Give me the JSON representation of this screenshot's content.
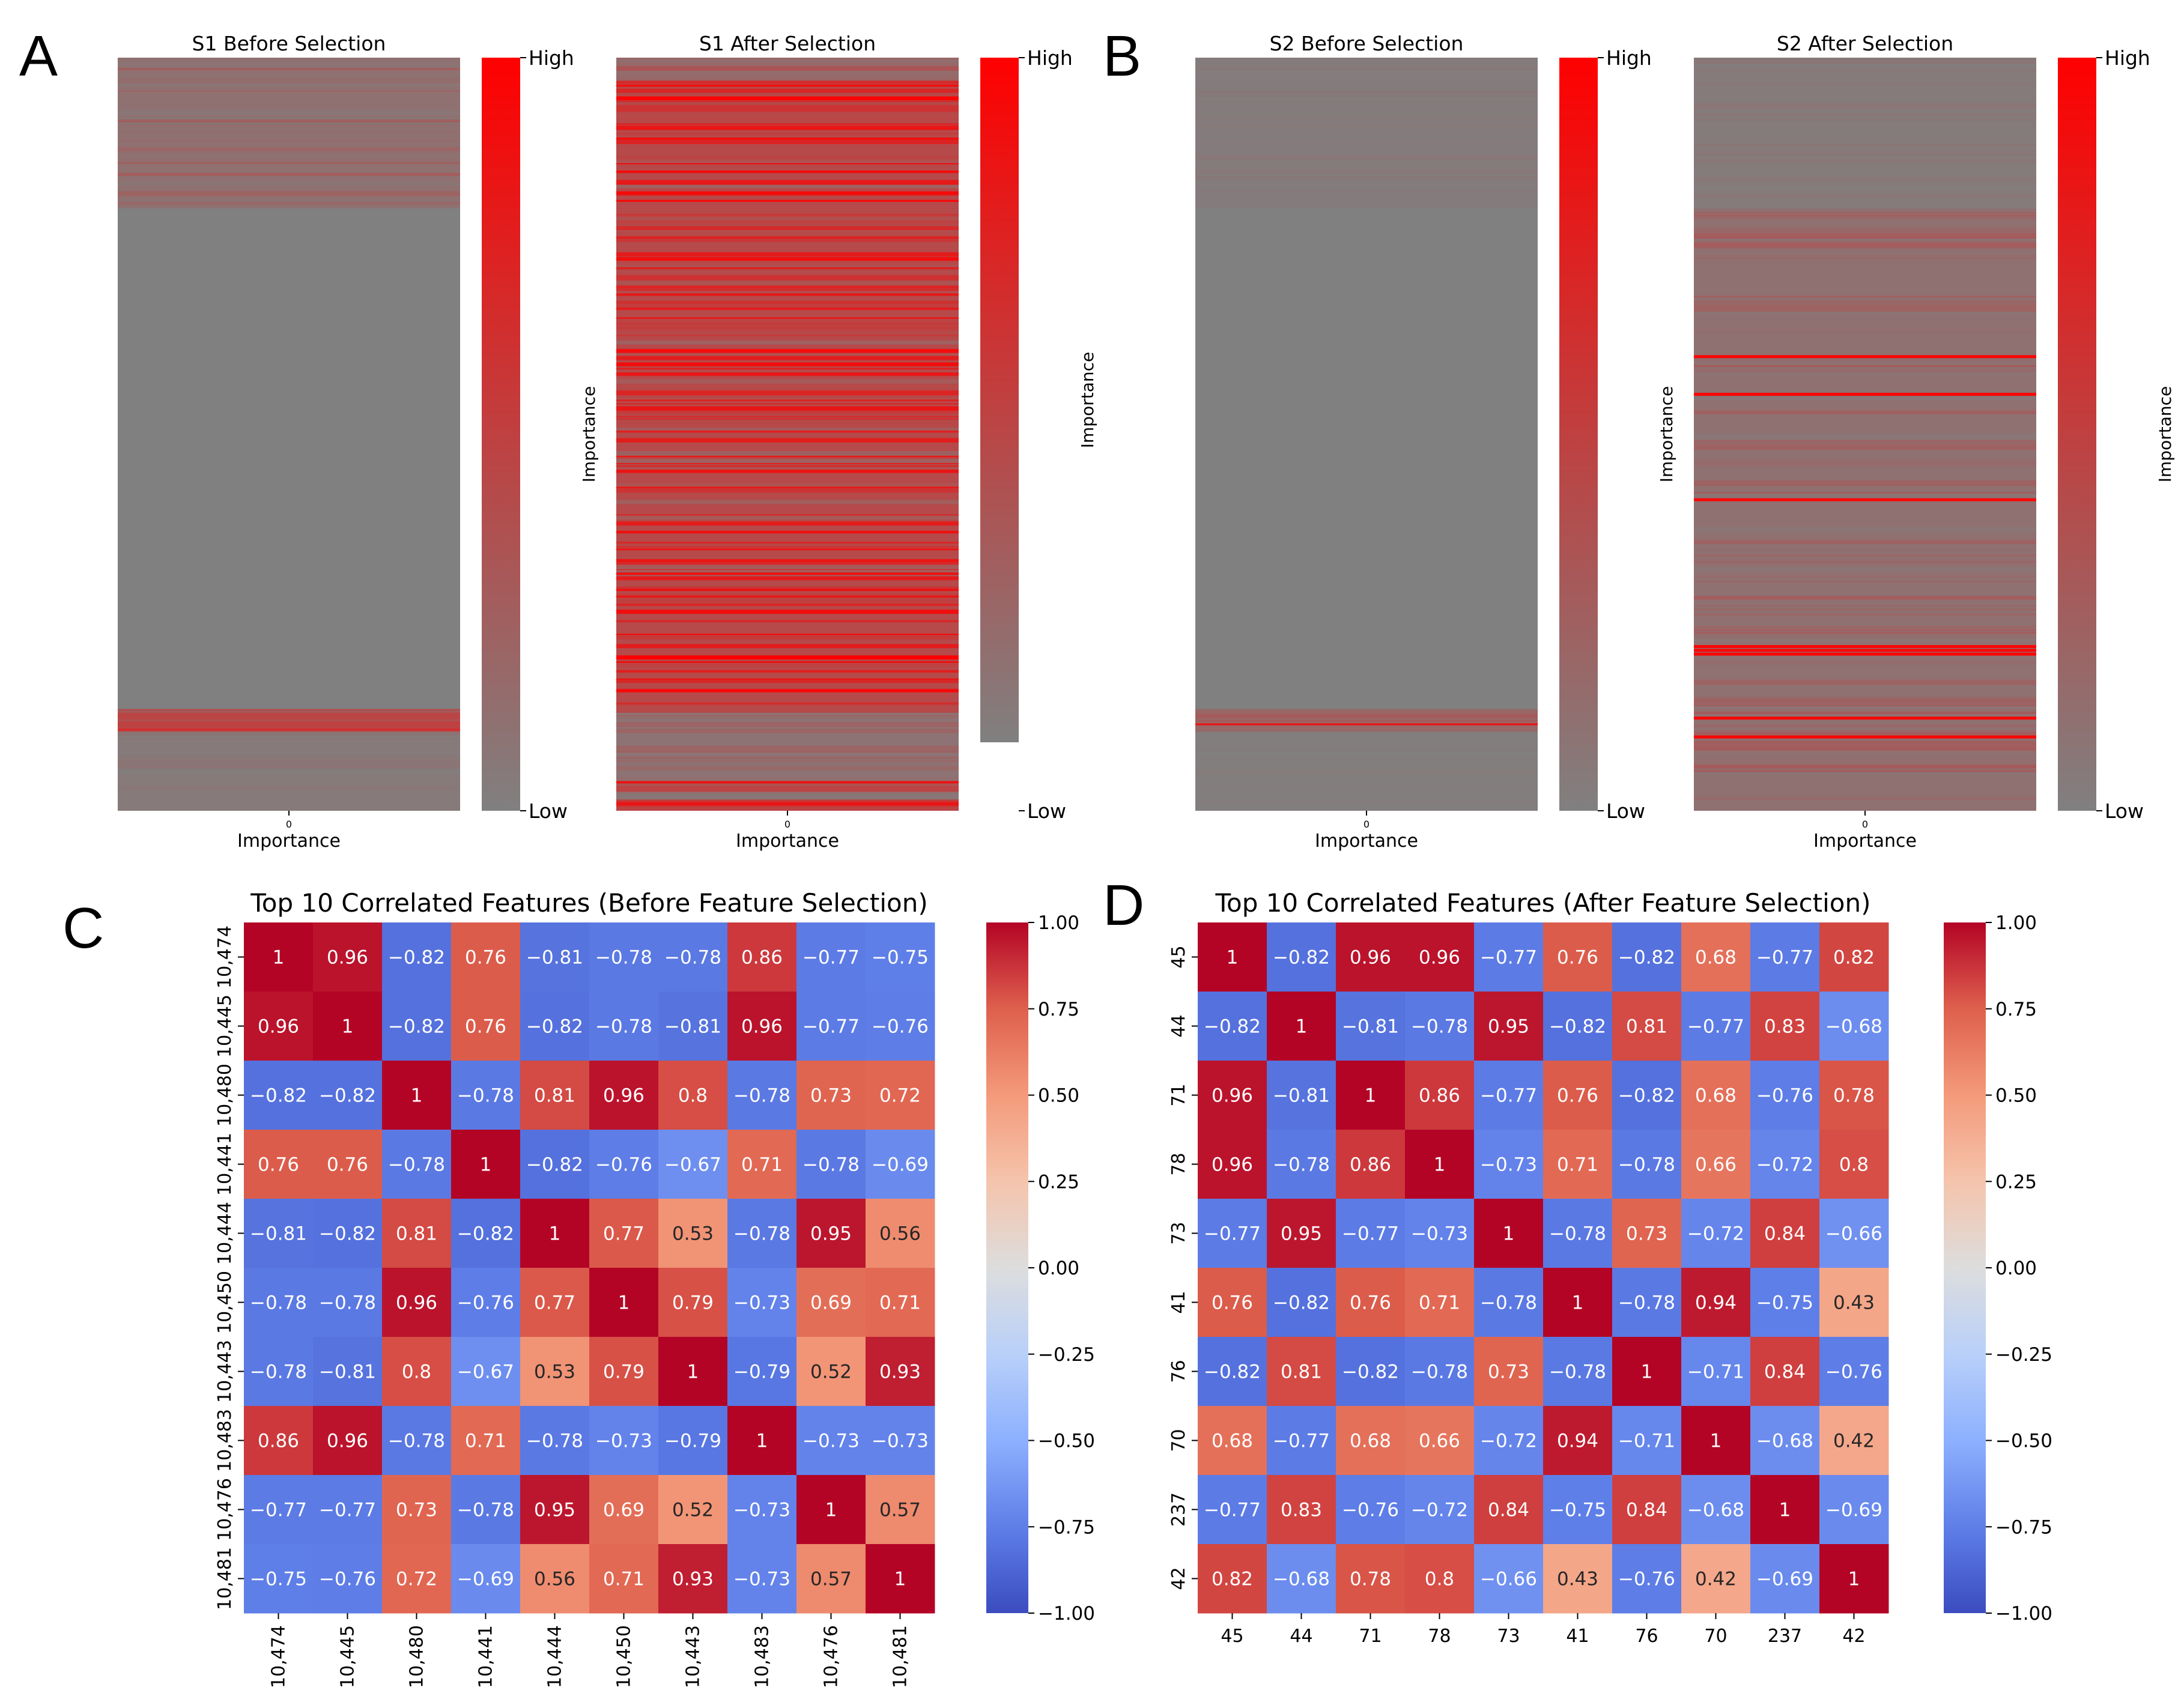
{
  "panels": {
    "a": "A",
    "b": "B",
    "c": "C",
    "d": "D"
  },
  "colors": {
    "gray": "#808080",
    "red": "#ff0000",
    "coolwarm_low": "#3b4cc0",
    "coolwarm_mid": "#dddddd",
    "coolwarm_high": "#b40426"
  },
  "chart_data": [
    {
      "type": "heatmap",
      "id": "s1-before",
      "title": "S1 Before Selection",
      "xlabel": "Importance",
      "xtick": "0",
      "colorbar": {
        "label": "Importance",
        "high": "High",
        "low": "Low"
      },
      "bands": [
        {
          "from": 0.0,
          "to": 0.2,
          "value": 0.22
        },
        {
          "from": 0.2,
          "to": 0.865,
          "value": 0.0
        },
        {
          "from": 0.865,
          "to": 0.895,
          "value": 0.85
        },
        {
          "from": 0.895,
          "to": 1.0,
          "value": 0.08
        }
      ]
    },
    {
      "type": "heatmap",
      "id": "s1-after",
      "title": "S1 After Selection",
      "xlabel": "Importance",
      "xtick": "0",
      "colorbar": {
        "label": "Importance",
        "high": "High",
        "low": "Low"
      },
      "bands": [
        {
          "from": 0.0,
          "to": 0.03,
          "value": 0.35
        },
        {
          "from": 0.03,
          "to": 0.87,
          "value": 0.78
        },
        {
          "from": 0.87,
          "to": 0.96,
          "value": 0.18
        },
        {
          "from": 0.96,
          "to": 0.975,
          "value": 0.85
        },
        {
          "from": 0.975,
          "to": 0.985,
          "value": 0.2
        },
        {
          "from": 0.985,
          "to": 1.0,
          "value": 0.85
        }
      ]
    },
    {
      "type": "heatmap",
      "id": "s2-before",
      "title": "S2 Before Selection",
      "xlabel": "Importance",
      "xtick": "0",
      "colorbar": {
        "label": "Importance",
        "high": "High",
        "low": "Low"
      },
      "bands": [
        {
          "from": 0.0,
          "to": 0.2,
          "value": 0.06
        },
        {
          "from": 0.2,
          "to": 0.865,
          "value": 0.0
        },
        {
          "from": 0.865,
          "to": 0.895,
          "value": 0.35
        },
        {
          "from": 0.895,
          "to": 1.0,
          "value": 0.03
        }
      ]
    },
    {
      "type": "heatmap",
      "id": "s2-after",
      "title": "S2 After Selection",
      "xlabel": "Importance",
      "xtick": "0",
      "colorbar": {
        "label": "Importance",
        "high": "High",
        "low": "Low"
      },
      "bands": [
        {
          "from": 0.0,
          "to": 0.2,
          "value": 0.07
        },
        {
          "from": 0.2,
          "to": 1.0,
          "value": 0.22
        }
      ]
    },
    {
      "type": "heatmap",
      "id": "corr-before",
      "title": "Top 10 Correlated Features (Before Feature Selection)",
      "labels": [
        "10,474",
        "10,445",
        "10,480",
        "10,441",
        "10,444",
        "10,450",
        "10,443",
        "10,483",
        "10,476",
        "10,481"
      ],
      "matrix": [
        [
          1,
          0.96,
          -0.82,
          0.76,
          -0.81,
          -0.78,
          -0.78,
          0.86,
          -0.77,
          -0.75
        ],
        [
          0.96,
          1,
          -0.82,
          0.76,
          -0.82,
          -0.78,
          -0.81,
          0.96,
          -0.77,
          -0.76
        ],
        [
          -0.82,
          -0.82,
          1,
          -0.78,
          0.81,
          0.96,
          0.8,
          -0.78,
          0.73,
          0.72
        ],
        [
          0.76,
          0.76,
          -0.78,
          1,
          -0.82,
          -0.76,
          -0.67,
          0.71,
          -0.78,
          -0.69
        ],
        [
          -0.81,
          -0.82,
          0.81,
          -0.82,
          1,
          0.77,
          0.53,
          -0.78,
          0.95,
          0.56
        ],
        [
          -0.78,
          -0.78,
          0.96,
          -0.76,
          0.77,
          1,
          0.79,
          -0.73,
          0.69,
          0.71
        ],
        [
          -0.78,
          -0.81,
          0.8,
          -0.67,
          0.53,
          0.79,
          1,
          -0.79,
          0.52,
          0.93
        ],
        [
          0.86,
          0.96,
          -0.78,
          0.71,
          -0.78,
          -0.73,
          -0.79,
          1,
          -0.73,
          -0.73
        ],
        [
          -0.77,
          -0.77,
          0.73,
          -0.78,
          0.95,
          0.69,
          0.52,
          -0.73,
          1,
          0.57
        ],
        [
          -0.75,
          -0.76,
          0.72,
          -0.69,
          0.56,
          0.71,
          0.93,
          -0.73,
          0.57,
          1
        ]
      ],
      "colorbar": {
        "ticks": [
          "1.00",
          "0.75",
          "0.50",
          "0.25",
          "0.00",
          "−0.25",
          "−0.50",
          "−0.75",
          "−1.00"
        ],
        "range": [
          -1,
          1
        ]
      }
    },
    {
      "type": "heatmap",
      "id": "corr-after",
      "title": "Top 10 Correlated Features (After Feature Selection)",
      "labels": [
        "45",
        "44",
        "71",
        "78",
        "73",
        "41",
        "76",
        "70",
        "237",
        "42"
      ],
      "matrix": [
        [
          1,
          -0.82,
          0.96,
          0.96,
          -0.77,
          0.76,
          -0.82,
          0.68,
          -0.77,
          0.82
        ],
        [
          -0.82,
          1,
          -0.81,
          -0.78,
          0.95,
          -0.82,
          0.81,
          -0.77,
          0.83,
          -0.68
        ],
        [
          0.96,
          -0.81,
          1,
          0.86,
          -0.77,
          0.76,
          -0.82,
          0.68,
          -0.76,
          0.78
        ],
        [
          0.96,
          -0.78,
          0.86,
          1,
          -0.73,
          0.71,
          -0.78,
          0.66,
          -0.72,
          0.8
        ],
        [
          -0.77,
          0.95,
          -0.77,
          -0.73,
          1,
          -0.78,
          0.73,
          -0.72,
          0.84,
          -0.66
        ],
        [
          0.76,
          -0.82,
          0.76,
          0.71,
          -0.78,
          1,
          -0.78,
          0.94,
          -0.75,
          0.43
        ],
        [
          -0.82,
          0.81,
          -0.82,
          -0.78,
          0.73,
          -0.78,
          1,
          -0.71,
          0.84,
          -0.76
        ],
        [
          0.68,
          -0.77,
          0.68,
          0.66,
          -0.72,
          0.94,
          -0.71,
          1,
          -0.68,
          0.42
        ],
        [
          -0.77,
          0.83,
          -0.76,
          -0.72,
          0.84,
          -0.75,
          0.84,
          -0.68,
          1,
          -0.69
        ],
        [
          0.82,
          -0.68,
          0.78,
          0.8,
          -0.66,
          0.43,
          -0.76,
          0.42,
          -0.69,
          1
        ]
      ],
      "colorbar": {
        "ticks": [
          "1.00",
          "0.75",
          "0.50",
          "0.25",
          "0.00",
          "−0.25",
          "−0.50",
          "−0.75",
          "−1.00"
        ],
        "range": [
          -1,
          1
        ]
      }
    }
  ]
}
